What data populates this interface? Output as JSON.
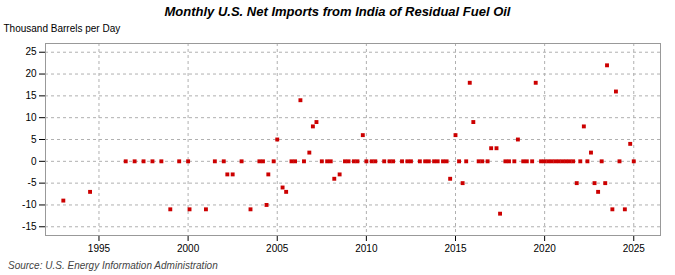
{
  "chart_data": {
    "type": "scatter",
    "title": "Monthly U.S. Net Imports from India of Residual Fuel Oil",
    "ylabel": "Thousand Barrels per Day",
    "caption": "Source: U.S. Energy Information Administration",
    "color": "#cc0000",
    "marker": "square",
    "grid": true,
    "xlim": [
      1992.0,
      2026.5
    ],
    "ylim": [
      -17,
      27
    ],
    "xticks": [
      1995,
      2000,
      2005,
      2010,
      2015,
      2020,
      2025
    ],
    "yticks": [
      -15,
      -10,
      -5,
      0,
      5,
      10,
      15,
      20,
      25
    ],
    "x": [
      1993.0,
      1994.5,
      1996.5,
      1997.0,
      1997.5,
      1998.0,
      1998.5,
      1999.0,
      1999.5,
      2000.0,
      2000.08,
      2001.0,
      2001.5,
      2002.0,
      2002.2,
      2002.5,
      2003.0,
      2003.5,
      2004.0,
      2004.2,
      2004.4,
      2004.5,
      2004.8,
      2005.0,
      2005.3,
      2005.5,
      2005.8,
      2006.0,
      2006.3,
      2006.5,
      2006.8,
      2007.0,
      2007.2,
      2007.5,
      2007.8,
      2008.0,
      2008.2,
      2008.5,
      2008.8,
      2009.0,
      2009.3,
      2009.5,
      2009.8,
      2010.0,
      2010.3,
      2010.5,
      2011.0,
      2011.3,
      2011.5,
      2012.0,
      2012.3,
      2012.5,
      2013.0,
      2013.3,
      2013.5,
      2013.8,
      2014.0,
      2014.3,
      2014.5,
      2014.7,
      2015.0,
      2015.2,
      2015.4,
      2015.6,
      2015.8,
      2016.0,
      2016.3,
      2016.5,
      2016.8,
      2017.0,
      2017.3,
      2017.5,
      2017.8,
      2018.0,
      2018.3,
      2018.5,
      2018.8,
      2019.0,
      2019.3,
      2019.5,
      2019.8,
      2020.0,
      2020.2,
      2020.4,
      2020.6,
      2020.8,
      2021.0,
      2021.2,
      2021.4,
      2021.6,
      2021.8,
      2022.0,
      2022.2,
      2022.4,
      2022.6,
      2022.8,
      2023.0,
      2023.2,
      2023.4,
      2023.5,
      2023.8,
      2024.0,
      2024.2,
      2024.5,
      2024.8,
      2025.0
    ],
    "values": [
      -9.0,
      -7.0,
      0.0,
      0.0,
      0.0,
      0.0,
      0.0,
      -11.0,
      0.0,
      0.0,
      -11.0,
      -11.0,
      0.0,
      0.0,
      -3.0,
      -3.0,
      0.0,
      -11.0,
      0.0,
      0.0,
      -10.0,
      -3.0,
      0.0,
      5.0,
      -6.0,
      -7.0,
      0.0,
      0.0,
      14.0,
      0.0,
      2.0,
      8.0,
      9.0,
      0.0,
      0.0,
      0.0,
      -4.0,
      -3.0,
      0.0,
      0.0,
      0.0,
      0.0,
      6.0,
      0.0,
      0.0,
      0.0,
      0.0,
      0.0,
      0.0,
      0.0,
      0.0,
      0.0,
      0.0,
      0.0,
      0.0,
      0.0,
      0.0,
      0.0,
      0.0,
      -4.0,
      6.0,
      0.0,
      -5.0,
      0.0,
      18.0,
      9.0,
      0.0,
      0.0,
      0.0,
      3.0,
      3.0,
      -12.0,
      0.0,
      0.0,
      0.0,
      5.0,
      0.0,
      0.0,
      0.0,
      18.0,
      0.0,
      0.0,
      0.0,
      0.0,
      0.0,
      0.0,
      0.0,
      0.0,
      0.0,
      0.0,
      -5.0,
      0.0,
      8.0,
      0.0,
      2.0,
      -5.0,
      -7.0,
      0.0,
      -5.0,
      22.0,
      -11.0,
      16.0,
      0.0,
      -11.0,
      4.0,
      0.0
    ]
  }
}
